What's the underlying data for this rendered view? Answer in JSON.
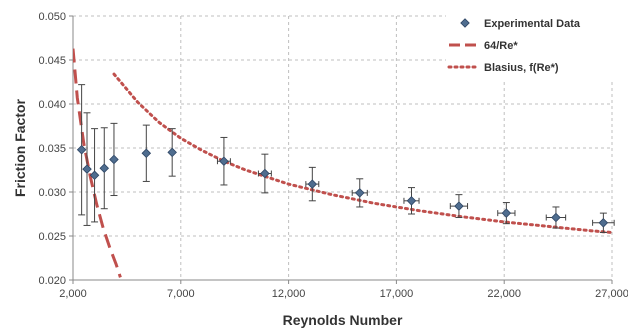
{
  "chart_data": {
    "type": "scatter",
    "title": "",
    "xlabel": "Reynolds Number",
    "ylabel": "Friction Factor",
    "xlim": [
      2000,
      27000
    ],
    "ylim": [
      0.02,
      0.05
    ],
    "x_ticks": [
      2000,
      7000,
      12000,
      17000,
      22000,
      27000
    ],
    "x_tick_labels": [
      "2,000",
      "7,000",
      "12,000",
      "17,000",
      "22,000",
      "27,000"
    ],
    "y_ticks": [
      0.02,
      0.025,
      0.03,
      0.035,
      0.04,
      0.045,
      0.05
    ],
    "y_tick_labels": [
      "0.020",
      "0.025",
      "0.030",
      "0.035",
      "0.040",
      "0.045",
      "0.050"
    ],
    "grid": true,
    "legend_position": "top-right",
    "colors": {
      "experimental": "#4f6d8f",
      "errorbar": "#444444",
      "laminar": "#c0504d",
      "blasius": "#c0504d",
      "grid": "#bfbfbf"
    },
    "series": [
      {
        "name": "Experimental Data",
        "kind": "markers-with-error-bars",
        "points": [
          {
            "x": 2400,
            "y": 0.0348,
            "y_err": 0.0074,
            "x_err": 0
          },
          {
            "x": 2650,
            "y": 0.0326,
            "y_err": 0.0064,
            "x_err": 0
          },
          {
            "x": 3000,
            "y": 0.0319,
            "y_err": 0.0053,
            "x_err": 0
          },
          {
            "x": 3450,
            "y": 0.0327,
            "y_err": 0.0046,
            "x_err": 0
          },
          {
            "x": 3900,
            "y": 0.0337,
            "y_err": 0.0041,
            "x_err": 0
          },
          {
            "x": 5400,
            "y": 0.0344,
            "y_err": 0.0032,
            "x_err": 0
          },
          {
            "x": 6600,
            "y": 0.0345,
            "y_err": 0.0027,
            "x_err": 0
          },
          {
            "x": 9000,
            "y": 0.0335,
            "y_err": 0.0027,
            "x_err": 300
          },
          {
            "x": 10900,
            "y": 0.0321,
            "y_err": 0.0022,
            "x_err": 300
          },
          {
            "x": 13100,
            "y": 0.0309,
            "y_err": 0.0019,
            "x_err": 300
          },
          {
            "x": 15300,
            "y": 0.0299,
            "y_err": 0.0016,
            "x_err": 350
          },
          {
            "x": 17700,
            "y": 0.029,
            "y_err": 0.0015,
            "x_err": 350
          },
          {
            "x": 19900,
            "y": 0.0284,
            "y_err": 0.0013,
            "x_err": 400
          },
          {
            "x": 22100,
            "y": 0.0276,
            "y_err": 0.0012,
            "x_err": 400
          },
          {
            "x": 24400,
            "y": 0.0271,
            "y_err": 0.0012,
            "x_err": 450
          },
          {
            "x": 26600,
            "y": 0.0265,
            "y_err": 0.0011,
            "x_err": 500
          }
        ]
      },
      {
        "name": "64/Re*",
        "kind": "dashed-line",
        "x": [
          2000,
          2200,
          2500,
          2800,
          3100,
          3400,
          3700,
          4000,
          4200
        ],
        "y": [
          0.0463,
          0.0407,
          0.0355,
          0.0318,
          0.0286,
          0.0259,
          0.0237,
          0.0218,
          0.0203
        ]
      },
      {
        "name": "Blasius, f(Re*)",
        "kind": "dotted-line",
        "x": [
          3900,
          5000,
          6000,
          7000,
          8000,
          9000,
          10000,
          12000,
          14000,
          16000,
          18000,
          20000,
          22000,
          24000,
          26000,
          27000
        ],
        "y": [
          0.0434,
          0.0402,
          0.0379,
          0.0361,
          0.0347,
          0.0335,
          0.0325,
          0.0309,
          0.0297,
          0.0287,
          0.0279,
          0.0272,
          0.0266,
          0.0261,
          0.0256,
          0.0254
        ]
      }
    ]
  }
}
